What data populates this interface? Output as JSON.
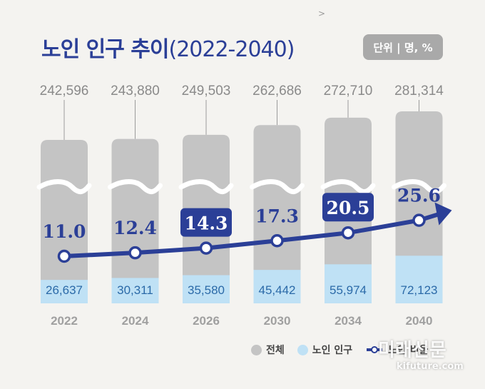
{
  "header": {
    "title": "노인 인구 추이",
    "title_period": "(2022-2040)",
    "unit": "단위 | 명, %",
    "arrow": ">"
  },
  "legend": {
    "total": "전체",
    "elderly": "노인 인구",
    "ratio": "노인 비율"
  },
  "watermark": {
    "name": "미래신문",
    "url": "kifuture.com"
  },
  "colors": {
    "total": "#c4c4c4",
    "elderly": "#bfe1f5",
    "ratio_line": "#2b3f97",
    "highlight_box": "#2b3f97"
  },
  "chart_data": {
    "type": "bar",
    "categories": [
      "2022",
      "2024",
      "2026",
      "2030",
      "2034",
      "2040"
    ],
    "series": [
      {
        "name": "전체",
        "values": [
          242596,
          243880,
          249503,
          262686,
          272710,
          281314
        ],
        "labels": [
          "242,596",
          "243,880",
          "249,503",
          "262,686",
          "272,710",
          "281,314"
        ]
      },
      {
        "name": "노인 인구",
        "values": [
          26637,
          30311,
          35580,
          45442,
          55974,
          72123
        ],
        "labels": [
          "26,637",
          "30,311",
          "35,580",
          "45,442",
          "55,974",
          "72,123"
        ]
      },
      {
        "name": "노인 비율",
        "type": "line",
        "values": [
          11.0,
          12.4,
          14.3,
          17.3,
          20.5,
          25.6
        ],
        "labels": [
          "11.0",
          "12.4",
          "14.3",
          "17.3",
          "20.5",
          "25.6"
        ],
        "highlighted": [
          false,
          false,
          true,
          false,
          true,
          false
        ]
      }
    ],
    "axis_break": true,
    "grid": false,
    "legend_position": "bottom-right"
  }
}
